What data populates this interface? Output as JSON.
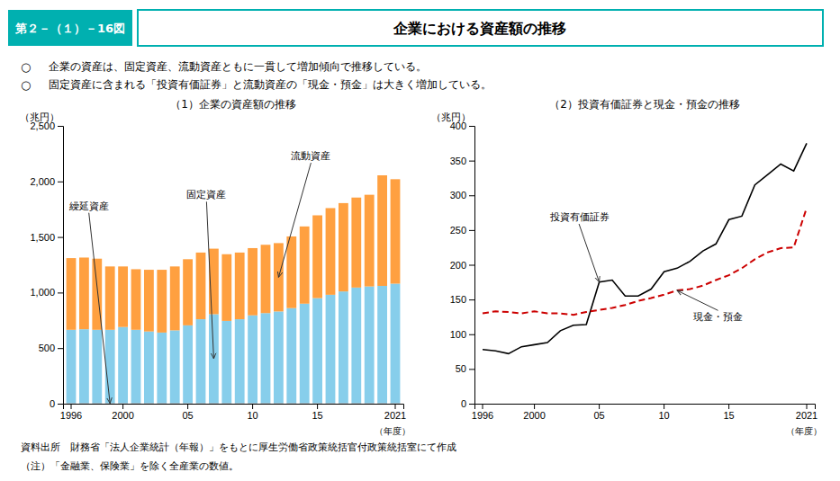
{
  "label": "第２－（１）－16図",
  "title": "企業における資産額の推移",
  "color": "#00b0b0",
  "bullet_symbol": "○",
  "bullets": [
    "企業の資産は、固定資産、流動資産ともに一貫して増加傾向で推移している。",
    "固定資産に含まれる「投資有価証券」と流動資産の「現金・預金」は大きく増加している。"
  ],
  "source": "資料出所　財務省「法人企業統計（年報）」をもとに厚生労働省政策統括官付政策統括室にて作成",
  "note": "（注）「金融業、保険業」を除く全産業の数値。",
  "chart_data": [
    {
      "type": "bar",
      "stacked": true,
      "grid": false,
      "title": "（1）企業の資産額の推移",
      "y_label": "（兆円）",
      "x_label": "（年度）",
      "categories": [
        "1996",
        null,
        null,
        null,
        "2000",
        null,
        null,
        null,
        null,
        "05",
        null,
        null,
        null,
        null,
        "10",
        null,
        null,
        null,
        null,
        "15",
        null,
        null,
        null,
        null,
        null,
        "2021"
      ],
      "series": [
        {
          "name": "繰延資産",
          "color": "#aaaaaa",
          "values": [
            5,
            5,
            5,
            5,
            5,
            5,
            5,
            5,
            5,
            5,
            5,
            5,
            5,
            5,
            5,
            5,
            5,
            5,
            5,
            5,
            5,
            5,
            5,
            5,
            5,
            5
          ]
        },
        {
          "name": "固定資産",
          "color": "#87CEEB",
          "values": [
            660,
            665,
            660,
            660,
            685,
            660,
            645,
            635,
            655,
            700,
            755,
            800,
            740,
            755,
            790,
            810,
            825,
            855,
            895,
            945,
            975,
            1005,
            1040,
            1050,
            1055,
            1075
          ]
        },
        {
          "name": "流動資産",
          "color": "#FFA040",
          "values": [
            645,
            645,
            640,
            570,
            545,
            545,
            555,
            565,
            575,
            595,
            600,
            590,
            600,
            600,
            605,
            615,
            615,
            645,
            695,
            745,
            780,
            795,
            810,
            825,
            995,
            940
          ]
        }
      ],
      "ylim": [
        0,
        2500
      ],
      "yticks": [
        0,
        500,
        {
          "value": 1000,
          "label": "1,000"
        },
        {
          "value": 1500,
          "label": "1,500"
        },
        {
          "value": 2000,
          "label": "2,000"
        },
        {
          "value": 2500,
          "label": "2,500"
        }
      ]
    },
    {
      "type": "line",
      "grid": false,
      "title": "（2）投資有価証券と現金・預金の推移",
      "y_label": "（兆円）",
      "x_label": "（年度）",
      "categories": [
        "1996",
        null,
        null,
        null,
        "2000",
        null,
        null,
        null,
        null,
        "05",
        null,
        null,
        null,
        null,
        "10",
        null,
        null,
        null,
        null,
        "15",
        null,
        null,
        null,
        null,
        null,
        "2021"
      ],
      "series": [
        {
          "name": "投資有価証券",
          "color": "#000000",
          "line_style": "solid",
          "values": [
            78,
            76,
            72,
            82,
            85,
            88,
            105,
            113,
            114,
            175,
            178,
            155,
            155,
            165,
            190,
            195,
            205,
            220,
            230,
            265,
            270,
            315,
            330,
            345,
            335,
            375
          ]
        },
        {
          "name": "現金・預金",
          "color": "#cc0000",
          "line_style": "dashed",
          "values": [
            130,
            133,
            132,
            130,
            133,
            130,
            130,
            128,
            132,
            135,
            138,
            142,
            148,
            152,
            157,
            163,
            165,
            170,
            178,
            185,
            195,
            208,
            218,
            224,
            225,
            282
          ]
        }
      ],
      "ylim": [
        0,
        400
      ],
      "yticks": [
        0,
        50,
        100,
        150,
        200,
        250,
        300,
        350,
        400
      ]
    }
  ]
}
